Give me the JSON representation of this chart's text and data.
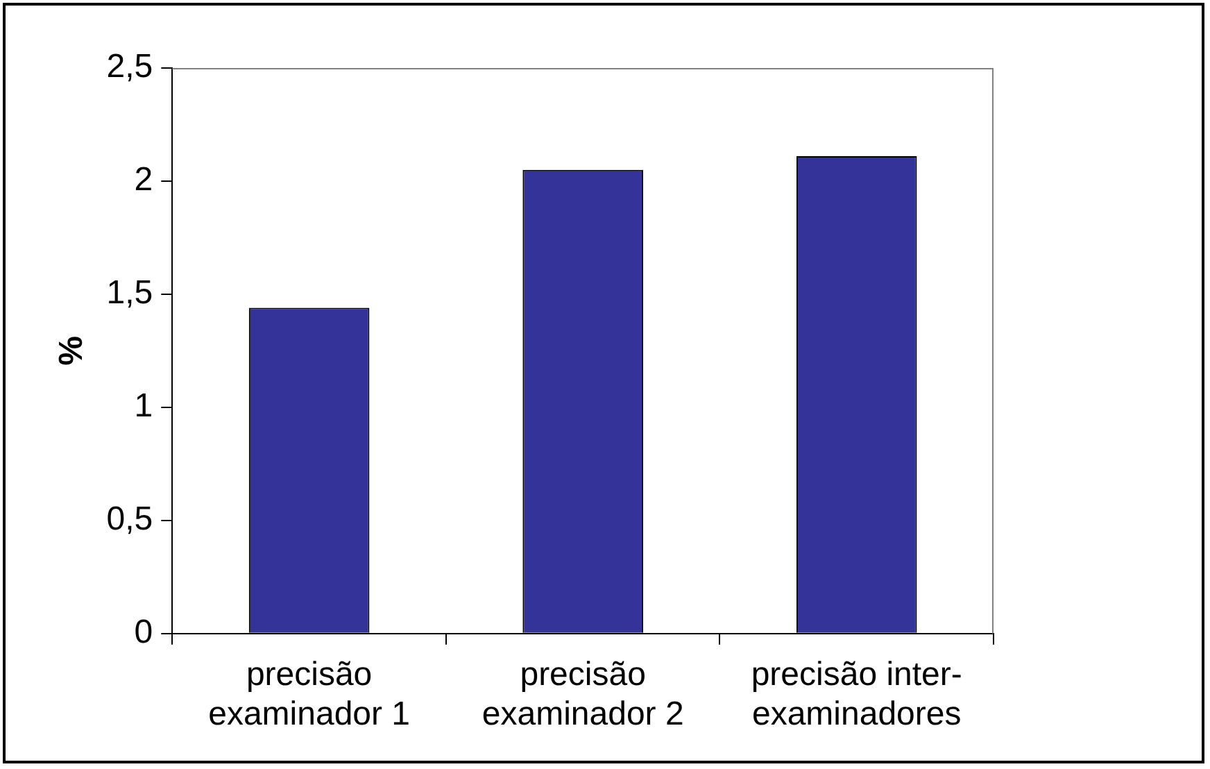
{
  "chart_data": {
    "type": "bar",
    "ylabel": "%",
    "categories": [
      "precisão examinador 1",
      "precisão examinador 2",
      "precisão inter-examinadores"
    ],
    "values": [
      1.44,
      2.05,
      2.11
    ],
    "color": "#333399",
    "ylim": [
      0,
      2.5
    ],
    "yticks": [
      {
        "value": 0,
        "label": "0"
      },
      {
        "value": 0.5,
        "label": "0,5"
      },
      {
        "value": 1,
        "label": "1"
      },
      {
        "value": 1.5,
        "label": "1,5"
      },
      {
        "value": 2,
        "label": "2"
      },
      {
        "value": 2.5,
        "label": "2,5"
      }
    ],
    "grid": false,
    "legend": false
  }
}
